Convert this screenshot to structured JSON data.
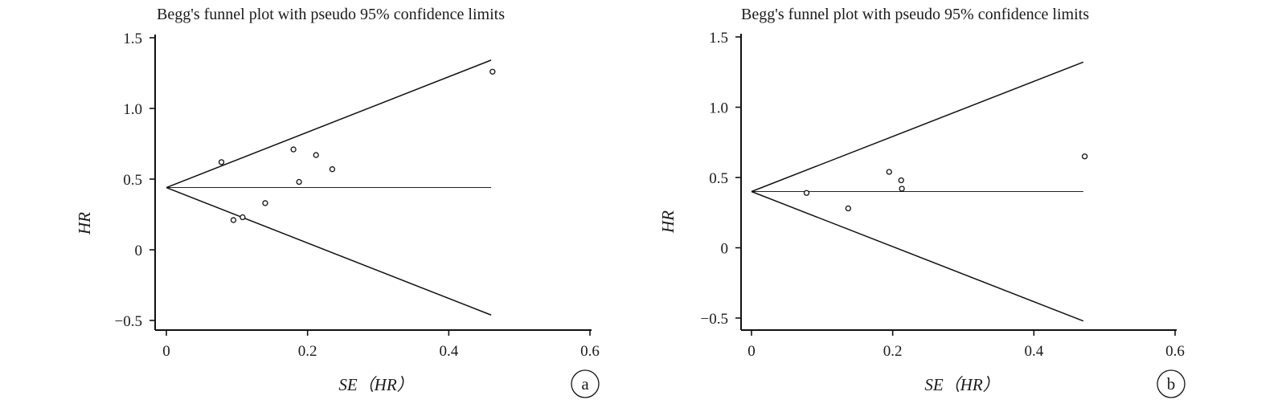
{
  "chart_data": [
    {
      "type": "scatter",
      "panel_label": "a",
      "title": "Begg's funnel plot with pseudo 95% confidence limits",
      "xlabel": "SE（HR）",
      "ylabel": "HR",
      "xlim": [
        0,
        0.6
      ],
      "ylim": [
        -0.5,
        1.5
      ],
      "x_ticks": [
        "0",
        "0.2",
        "0.4",
        "0.6"
      ],
      "y_ticks": [
        "−0.5",
        "0",
        "0.5",
        "1.0",
        "1.5"
      ],
      "pooled_estimate": 0.44,
      "limits_max_se": 0.46,
      "points": [
        {
          "x": 0.078,
          "y": 0.62
        },
        {
          "x": 0.095,
          "y": 0.21
        },
        {
          "x": 0.108,
          "y": 0.23
        },
        {
          "x": 0.14,
          "y": 0.33
        },
        {
          "x": 0.18,
          "y": 0.71
        },
        {
          "x": 0.188,
          "y": 0.48
        },
        {
          "x": 0.212,
          "y": 0.67
        },
        {
          "x": 0.235,
          "y": 0.57
        },
        {
          "x": 0.462,
          "y": 1.26
        }
      ],
      "grid": false
    },
    {
      "type": "scatter",
      "panel_label": "b",
      "title": "Begg's funnel plot with pseudo 95% confidence limits",
      "xlabel": "SE（HR）",
      "ylabel": "HR",
      "xlim": [
        0,
        0.6
      ],
      "ylim": [
        -0.5,
        1.5
      ],
      "x_ticks": [
        "0",
        "0.2",
        "0.4",
        "0.6"
      ],
      "y_ticks": [
        "−0.5",
        "0",
        "0.5",
        "1.0",
        "1.5"
      ],
      "pooled_estimate": 0.4,
      "limits_max_se": 0.47,
      "points": [
        {
          "x": 0.078,
          "y": 0.39
        },
        {
          "x": 0.137,
          "y": 0.28
        },
        {
          "x": 0.195,
          "y": 0.54
        },
        {
          "x": 0.212,
          "y": 0.48
        },
        {
          "x": 0.213,
          "y": 0.42
        },
        {
          "x": 0.472,
          "y": 0.65
        }
      ],
      "grid": false
    }
  ]
}
